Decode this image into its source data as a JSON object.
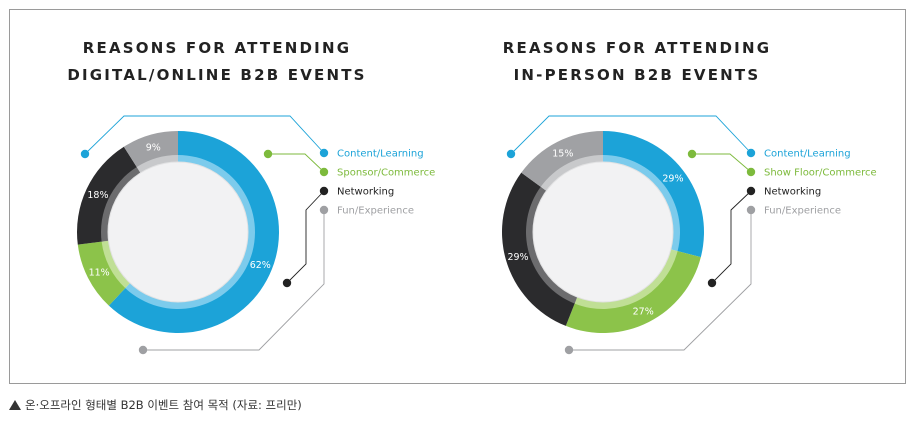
{
  "chart_data": [
    {
      "type": "pie",
      "title": "REASONS FOR ATTENDING\nDIGITAL/ONLINE B2B EVENTS",
      "categories": [
        "Content/Learning",
        "Sponsor/Commerce",
        "Networking",
        "Fun/Experience"
      ],
      "values": [
        62,
        11,
        18,
        9
      ],
      "labels": [
        "62%",
        "11%",
        "18%",
        "9%"
      ],
      "legend": "right"
    },
    {
      "type": "pie",
      "title": "REASONS FOR ATTENDING\nIN-PERSON B2B EVENTS",
      "categories": [
        "Content/Learning",
        "Show Floor/Commerce",
        "Networking",
        "Fun/Experience"
      ],
      "values": [
        29,
        27,
        29,
        15
      ],
      "labels": [
        "29%",
        "27%",
        "29%",
        "15%"
      ],
      "legend": "right"
    }
  ],
  "colors": {
    "content": "#1ca3d8",
    "commerce": "#8cc34a",
    "networking": "#2b2b2d",
    "fun": "#a0a1a4",
    "content_inner": "#7ccbec",
    "commerce_inner": "#c0df95",
    "networking_inner": "#6c6c6e",
    "fun_inner": "#c8c9cb",
    "legend_content": "#1ca3d8",
    "legend_commerce": "#7dba3c",
    "legend_networking": "#222222",
    "legend_fun": "#9fa0a3"
  },
  "caption": "온·오프라인 형태별 B2B 이벤트 참여 목적 (자료: 프리만)"
}
